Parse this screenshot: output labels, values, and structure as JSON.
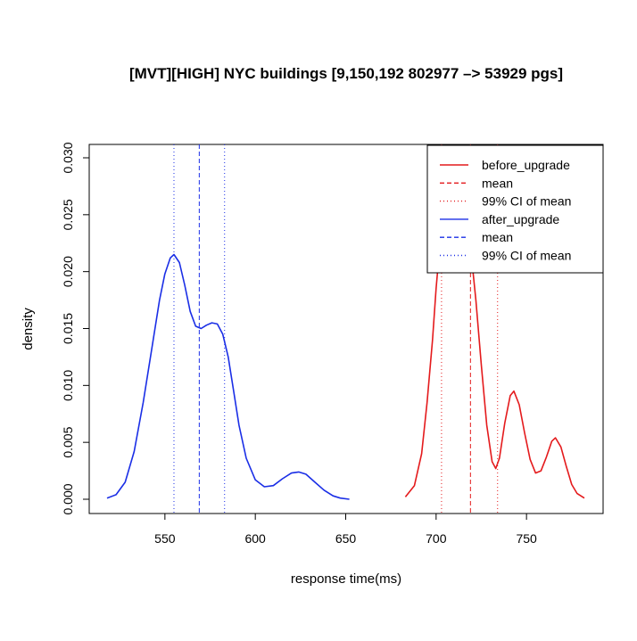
{
  "chart_data": {
    "type": "line",
    "title": "[MVT][HIGH] NYC buildings [9,150,192 802977 –> 53929   pgs]",
    "xlabel": "response time(ms)",
    "ylabel": "density",
    "xlim": [
      500,
      800
    ],
    "ylim": [
      0,
      0.03
    ],
    "x_ticks": [
      550,
      600,
      650,
      700,
      750
    ],
    "x_tick_labels": [
      "550",
      "600",
      "650",
      "700",
      "750"
    ],
    "y_ticks": [
      0.0,
      0.005,
      0.01,
      0.015,
      0.02,
      0.025,
      0.03
    ],
    "y_tick_labels": [
      "0.000",
      "0.005",
      "0.010",
      "0.015",
      "0.020",
      "0.025",
      "0.030"
    ],
    "grid": false,
    "legend_position": "top-right",
    "legend": [
      {
        "label": "before_upgrade",
        "color": "#e41a1c",
        "style": "solid"
      },
      {
        "label": "mean",
        "color": "#e41a1c",
        "style": "dashed"
      },
      {
        "label": "99% CI  of mean",
        "color": "#e41a1c",
        "style": "dotted"
      },
      {
        "label": "after_upgrade",
        "color": "#1a2ee6",
        "style": "solid"
      },
      {
        "label": "mean",
        "color": "#1a2ee6",
        "style": "dashed"
      },
      {
        "label": "99% CI  of mean",
        "color": "#1a2ee6",
        "style": "dotted"
      }
    ],
    "series": [
      {
        "name": "before_upgrade",
        "color": "#e41a1c",
        "points": [
          [
            683,
            0.0002
          ],
          [
            688,
            0.0012
          ],
          [
            692,
            0.004
          ],
          [
            695,
            0.0085
          ],
          [
            698,
            0.014
          ],
          [
            700,
            0.0185
          ],
          [
            702,
            0.0222
          ],
          [
            704,
            0.025
          ],
          [
            707,
            0.0272
          ],
          [
            710,
            0.0281
          ],
          [
            713,
            0.0275
          ],
          [
            716,
            0.0255
          ],
          [
            719,
            0.0222
          ],
          [
            722,
            0.0175
          ],
          [
            725,
            0.0118
          ],
          [
            728,
            0.0065
          ],
          [
            731,
            0.0033
          ],
          [
            733,
            0.0027
          ],
          [
            735,
            0.0036
          ],
          [
            738,
            0.0067
          ],
          [
            741,
            0.0091
          ],
          [
            743,
            0.0095
          ],
          [
            746,
            0.0083
          ],
          [
            749,
            0.0058
          ],
          [
            752,
            0.0035
          ],
          [
            755,
            0.0023
          ],
          [
            758,
            0.0025
          ],
          [
            761,
            0.0037
          ],
          [
            764,
            0.0051
          ],
          [
            766,
            0.0054
          ],
          [
            769,
            0.0046
          ],
          [
            772,
            0.0029
          ],
          [
            775,
            0.0013
          ],
          [
            778,
            0.0005
          ],
          [
            782,
            0.0001
          ]
        ],
        "mean": 719,
        "ci": [
          703,
          734
        ]
      },
      {
        "name": "after_upgrade",
        "color": "#1a2ee6",
        "points": [
          [
            518,
            0.0001
          ],
          [
            523,
            0.0004
          ],
          [
            528,
            0.0015
          ],
          [
            533,
            0.0042
          ],
          [
            538,
            0.0085
          ],
          [
            543,
            0.0135
          ],
          [
            547,
            0.0175
          ],
          [
            550,
            0.0198
          ],
          [
            553,
            0.0212
          ],
          [
            555,
            0.0215
          ],
          [
            558,
            0.0208
          ],
          [
            561,
            0.0188
          ],
          [
            564,
            0.0165
          ],
          [
            567,
            0.0152
          ],
          [
            570,
            0.015
          ],
          [
            573,
            0.0153
          ],
          [
            576,
            0.0155
          ],
          [
            579,
            0.0154
          ],
          [
            582,
            0.0145
          ],
          [
            585,
            0.0125
          ],
          [
            588,
            0.0095
          ],
          [
            591,
            0.0065
          ],
          [
            595,
            0.0036
          ],
          [
            600,
            0.0017
          ],
          [
            605,
            0.0011
          ],
          [
            610,
            0.0012
          ],
          [
            615,
            0.0018
          ],
          [
            620,
            0.0023
          ],
          [
            624,
            0.0024
          ],
          [
            628,
            0.0022
          ],
          [
            633,
            0.0015
          ],
          [
            638,
            0.0008
          ],
          [
            643,
            0.0003
          ],
          [
            647,
            0.0001
          ],
          [
            652,
            0.0
          ]
        ],
        "mean": 569,
        "ci": [
          555,
          583
        ]
      }
    ]
  }
}
